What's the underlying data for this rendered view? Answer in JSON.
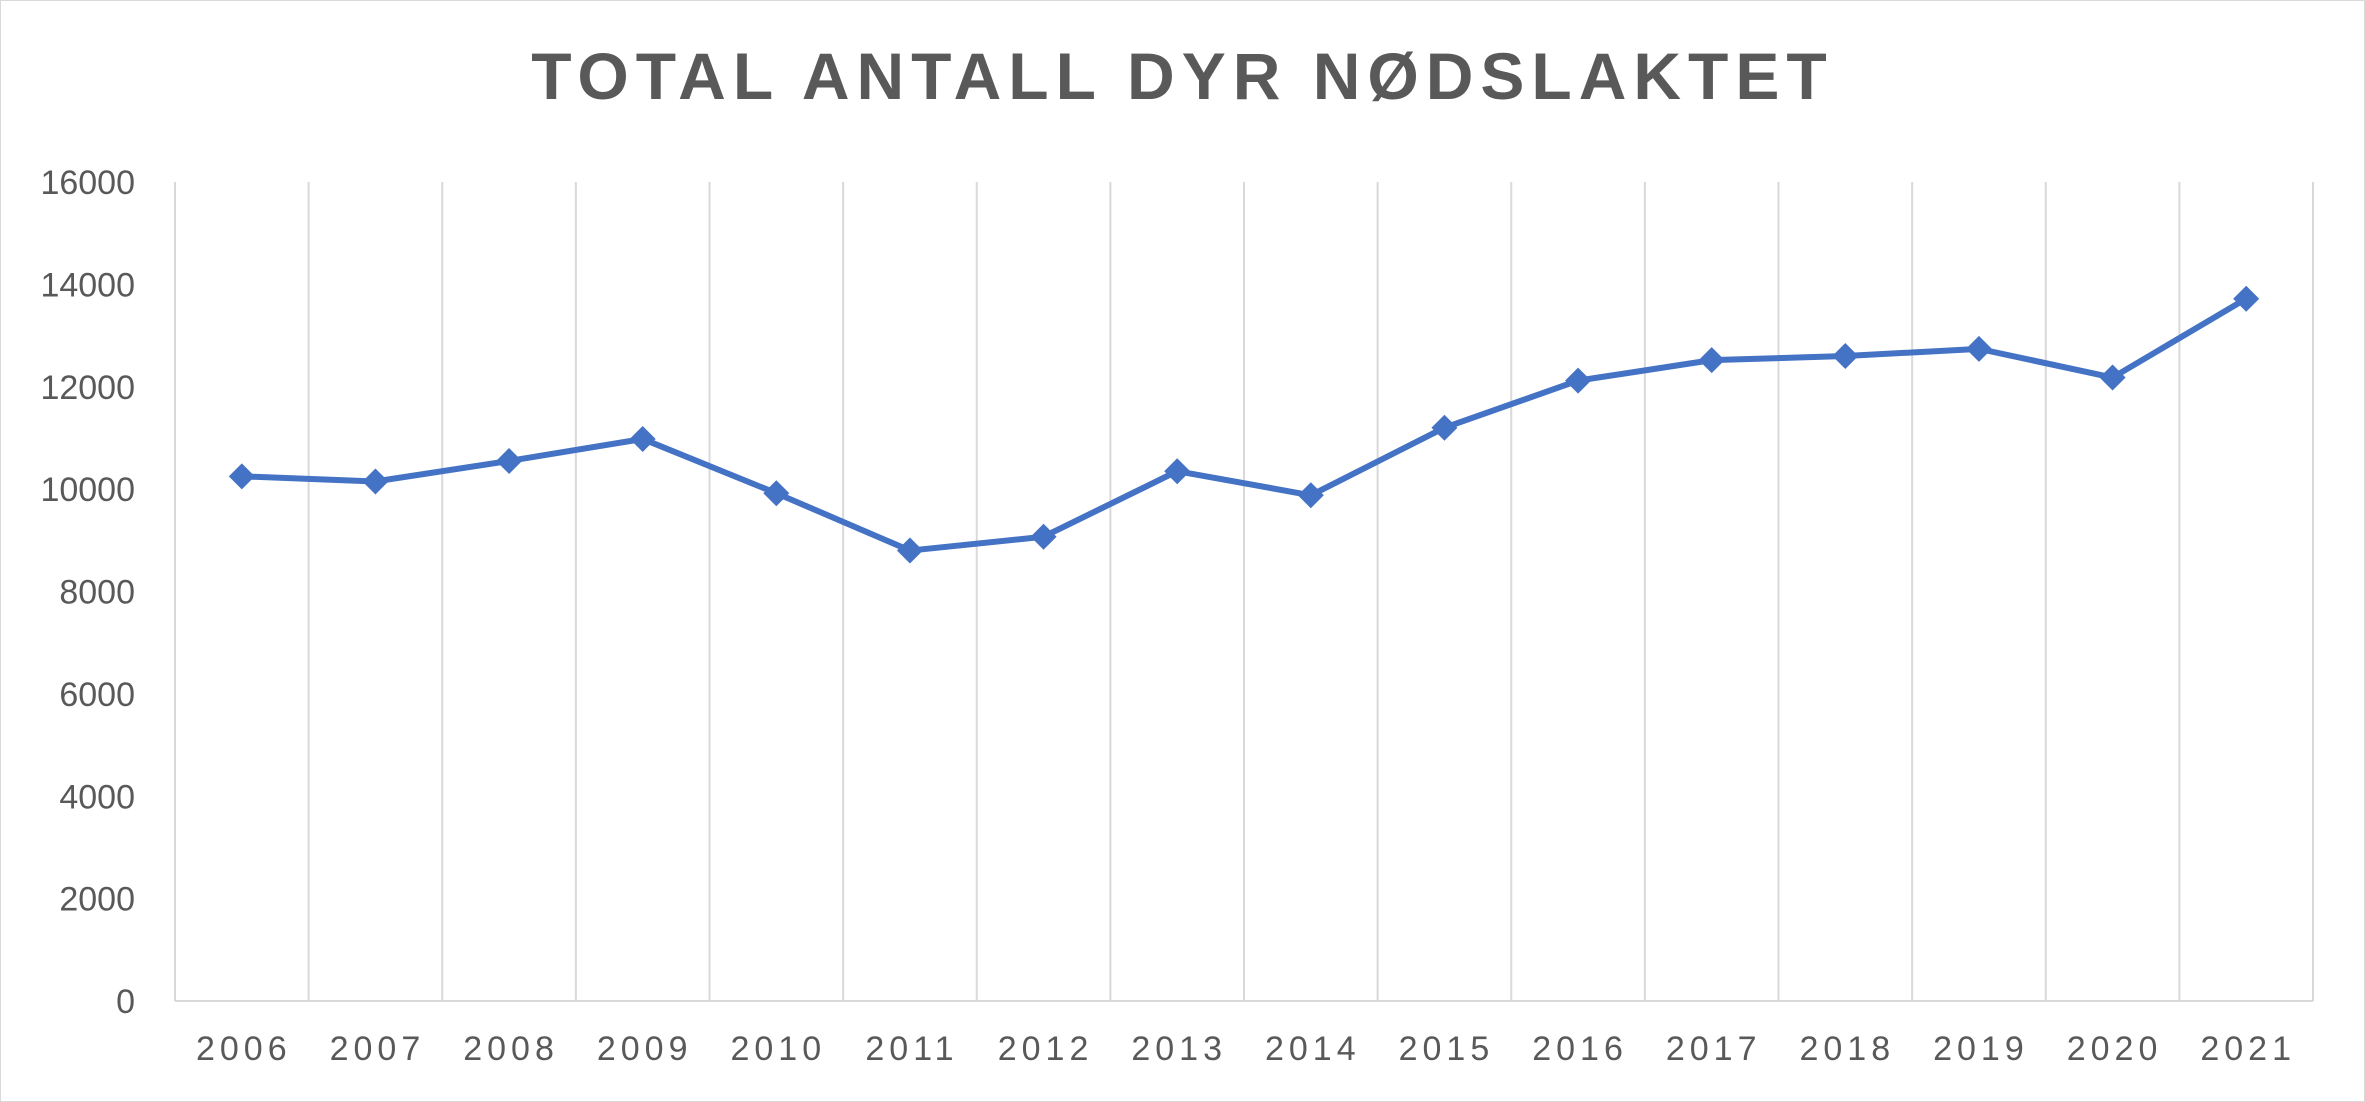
{
  "chart_data": {
    "type": "line",
    "title": "TOTAL ANTALL DYR NØDSLAKTET",
    "xlabel": "",
    "ylabel": "",
    "categories": [
      "2006",
      "2007",
      "2008",
      "2009",
      "2010",
      "2011",
      "2012",
      "2013",
      "2014",
      "2015",
      "2016",
      "2017",
      "2018",
      "2019",
      "2020",
      "2021"
    ],
    "series": [
      {
        "values": [
          10250,
          10150,
          10550,
          10980,
          9920,
          8800,
          9070,
          10350,
          9880,
          11200,
          12120,
          12520,
          12600,
          12740,
          12180,
          13720
        ]
      }
    ],
    "ylim": [
      0,
      16000
    ],
    "yticks": [
      "0",
      "2000",
      "4000",
      "6000",
      "8000",
      "10000",
      "12000",
      "14000",
      "16000"
    ],
    "grid": "vertical",
    "marker": "diamond",
    "legend": "none",
    "colors": {
      "line": "#4472c4",
      "grid": "#d9d9d9",
      "text": "#595959"
    }
  }
}
